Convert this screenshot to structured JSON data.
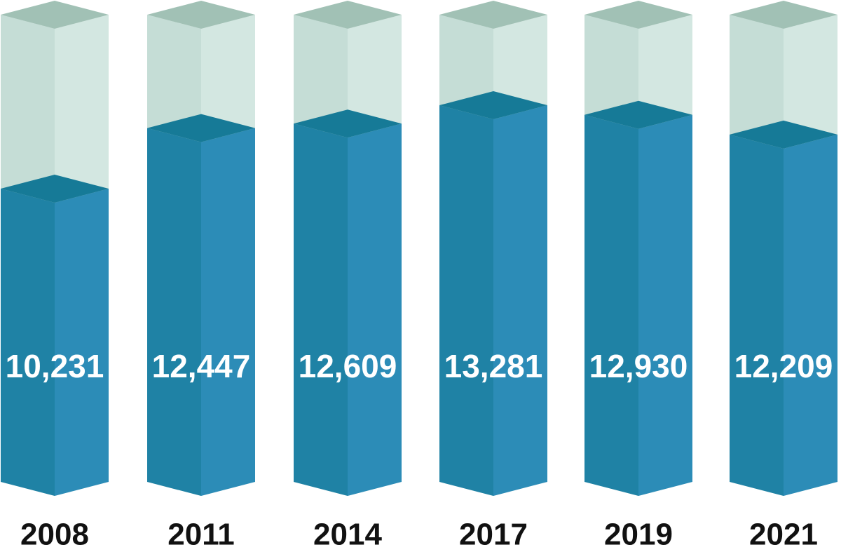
{
  "colors": {
    "fill_left": "#1f82a5",
    "fill_right": "#2c8cb7",
    "fill_top": "#167a97",
    "empty_left": "#c5ddd6",
    "empty_right": "#d3e7e1",
    "empty_top": "#a1c1b5",
    "value_text": "#ffffff",
    "year_text": "#111111"
  },
  "chart_data": {
    "type": "bar",
    "title": "",
    "xlabel": "",
    "ylabel": "",
    "categories": [
      "2008",
      "2011",
      "2014",
      "2017",
      "2019",
      "2021"
    ],
    "values": [
      10231,
      12447,
      12609,
      13281,
      12930,
      12209
    ],
    "value_labels": [
      "10,231",
      "12,447",
      "12,609",
      "13,281",
      "12,930",
      "12,209"
    ],
    "ylim": [
      0,
      15160
    ],
    "grid": false,
    "legend": "none"
  }
}
